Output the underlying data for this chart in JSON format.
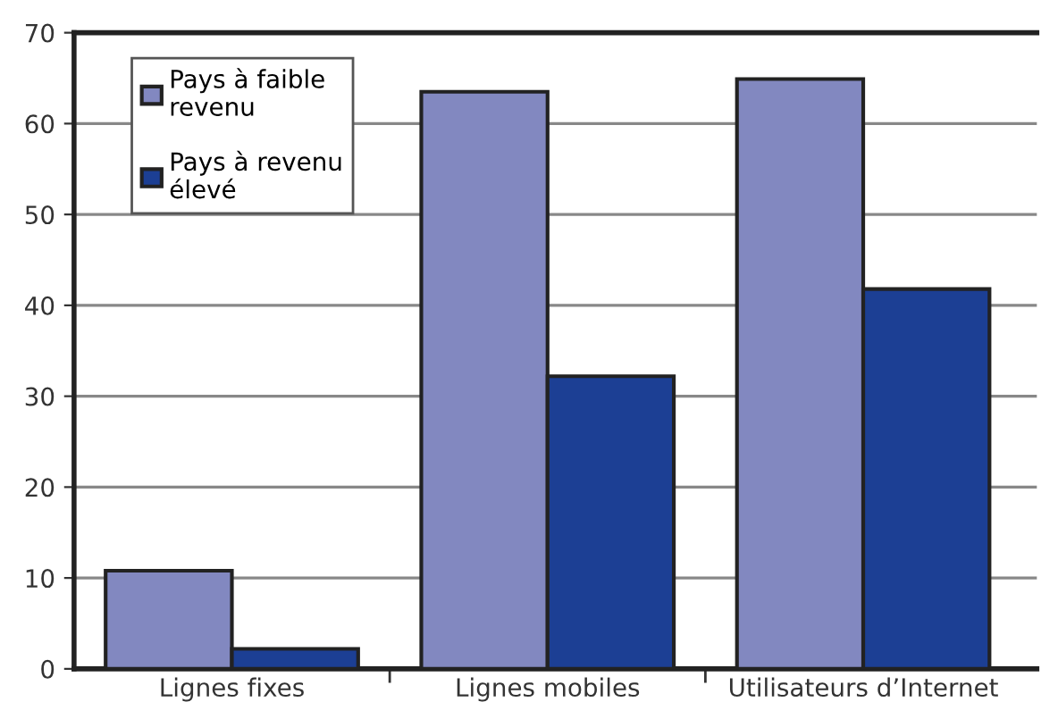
{
  "chart_data": {
    "type": "bar",
    "categories": [
      "Lignes fixes",
      "Lignes mobiles",
      "Utilisateurs d’Internet"
    ],
    "series": [
      {
        "name": "Pays à faible\nrevenu",
        "color": "#8288c0",
        "values": [
          10.8,
          63.5,
          64.9
        ]
      },
      {
        "name": "Pays à revenu\nélevé",
        "color": "#1c3f94",
        "values": [
          2.2,
          32.2,
          41.8
        ]
      }
    ],
    "ylim": [
      0,
      70
    ],
    "yticks": [
      0,
      10,
      20,
      30,
      40,
      50,
      60,
      70
    ],
    "grid": "y",
    "legend": "top left"
  }
}
